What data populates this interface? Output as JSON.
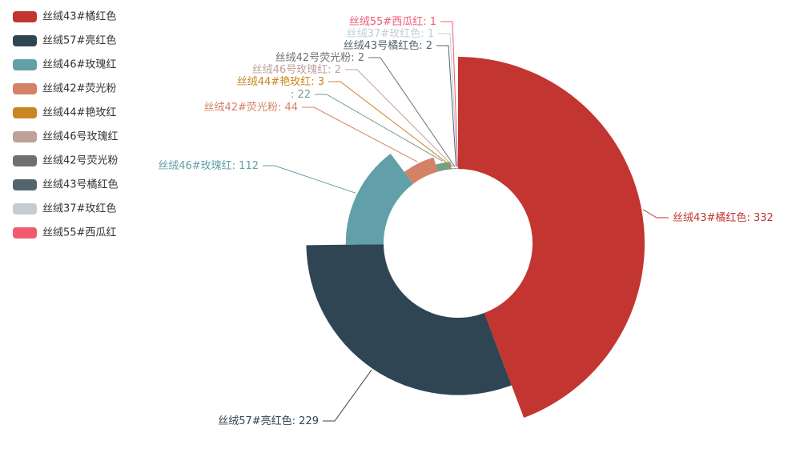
{
  "chart_data": {
    "type": "pie",
    "rose": "radius",
    "categories": [
      "丝绒43#橘红色",
      "丝绒57#亮红色",
      "丝绒46#玫瑰红",
      "丝绒42#荧光粉",
      null,
      "丝绒44#艳玫红",
      "丝绒46号玫瑰红",
      "丝绒42号荧光粉",
      "丝绒43号橘红色",
      "丝绒37#玫红色",
      "丝绒55#西瓜红"
    ],
    "values": [
      332,
      229,
      112,
      44,
      22,
      3,
      2,
      2,
      2,
      1,
      1
    ],
    "colors": [
      "#c23531",
      "#2f4554",
      "#61a0a8",
      "#d48265",
      "#749f83",
      "#ca8622",
      "#bda29a",
      "#6e7074",
      "#546570",
      "#c4ccd3",
      "#f05b72"
    ],
    "legend": "top-left"
  }
}
